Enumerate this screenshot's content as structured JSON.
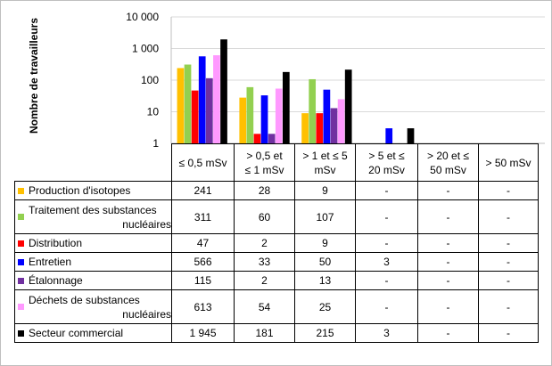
{
  "chart_data": {
    "type": "bar",
    "title": "",
    "xlabel": "",
    "ylabel": "Nombre de travailleurs",
    "yscale": "log",
    "ylim": [
      1,
      10000
    ],
    "yticks": [
      "1",
      "10",
      "100",
      "1 000",
      "10 000"
    ],
    "categories": [
      "≤ 0,5 mSv",
      "> 0,5 et ≤ 1 mSv",
      "> 1 et ≤ 5 mSv",
      "> 5 et ≤ 20 mSv",
      "> 20 et ≤ 50 mSv",
      "> 50 mSv"
    ],
    "grid": true,
    "legend": "table-left",
    "series": [
      {
        "name": "Production d'isotopes",
        "color": "#FFC000",
        "values": [
          241,
          28,
          9,
          null,
          null,
          null
        ],
        "labels": [
          "241",
          "28",
          "9",
          "-",
          "-",
          "-"
        ]
      },
      {
        "name": "Traitement des substances nucléaires",
        "color": "#92D050",
        "values": [
          311,
          60,
          107,
          null,
          null,
          null
        ],
        "labels": [
          "311",
          "60",
          "107",
          "-",
          "-",
          "-"
        ]
      },
      {
        "name": "Distribution",
        "color": "#FF0000",
        "values": [
          47,
          2,
          9,
          null,
          null,
          null
        ],
        "labels": [
          "47",
          "2",
          "9",
          "-",
          "-",
          "-"
        ]
      },
      {
        "name": "Entretien",
        "color": "#0000FF",
        "values": [
          566,
          33,
          50,
          3,
          null,
          null
        ],
        "labels": [
          "566",
          "33",
          "50",
          "3",
          "-",
          "-"
        ]
      },
      {
        "name": "Étalonnage",
        "color": "#7030A0",
        "values": [
          115,
          2,
          13,
          null,
          null,
          null
        ],
        "labels": [
          "115",
          "2",
          "13",
          "-",
          "-",
          "-"
        ]
      },
      {
        "name": "Déchets de substances nucléaires",
        "color": "#FF99FF",
        "values": [
          613,
          54,
          25,
          null,
          null,
          null
        ],
        "labels": [
          "613",
          "54",
          "25",
          "-",
          "-",
          "-"
        ]
      },
      {
        "name": "Secteur commercial",
        "color": "#000000",
        "values": [
          1945,
          181,
          215,
          3,
          null,
          null
        ],
        "labels": [
          "1 945",
          "181",
          "215",
          "3",
          "-",
          "-"
        ]
      }
    ]
  },
  "table": {
    "headers": [
      [
        "≤ 0,5 mSv"
      ],
      [
        "> 0,5 et",
        "≤ 1 mSv"
      ],
      [
        "> 1 et ≤ 5",
        "mSv"
      ],
      [
        "> 5 et ≤",
        "20 mSv"
      ],
      [
        "> 20 et ≤",
        "50 mSv"
      ],
      [
        "> 50 mSv"
      ]
    ],
    "row_labels": [
      [
        "Production d'isotopes"
      ],
      [
        "Traitement des substances",
        "nucléaires"
      ],
      [
        "Distribution"
      ],
      [
        "Entretien"
      ],
      [
        "Étalonnage"
      ],
      [
        "Déchets de substances",
        "nucléaires"
      ],
      [
        "Secteur commercial"
      ]
    ]
  }
}
